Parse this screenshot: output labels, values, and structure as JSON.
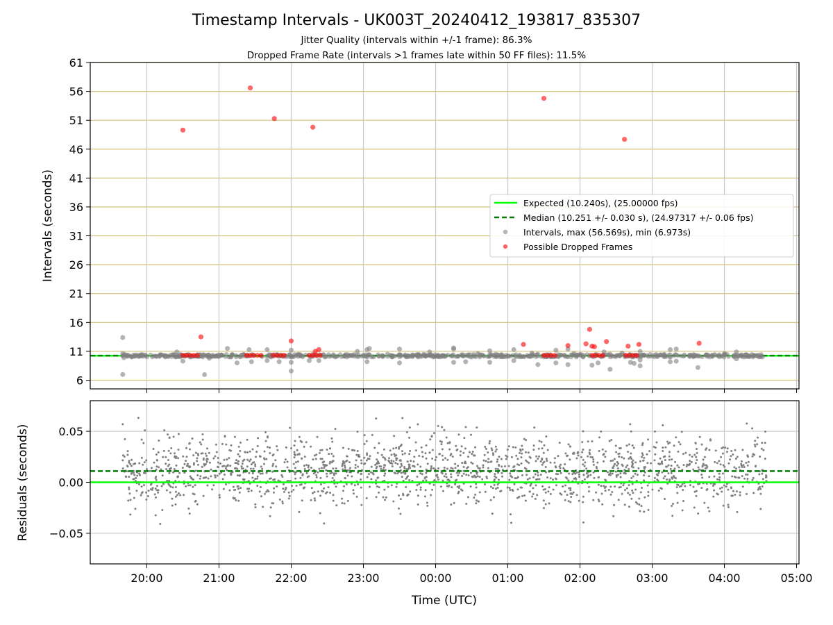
{
  "chart_data": [
    {
      "type": "scatter",
      "title": "Timestamp Intervals - UK003T_20240412_193817_835307",
      "subtitle_lines": [
        "Jitter Quality (intervals within +/-1 frame): 86.3%",
        "Dropped Frame Rate (intervals >1 frames late within 50 FF files): 11.5%"
      ],
      "xlabel": "",
      "ylabel": "Intervals (seconds)",
      "x_is_time": true,
      "x_ticks": [
        "20:00",
        "21:00",
        "22:00",
        "23:00",
        "00:00",
        "01:00",
        "02:00",
        "03:00",
        "04:00",
        "05:00"
      ],
      "xlim": [
        "19:13",
        "05:02"
      ],
      "ylim": [
        4.5,
        61
      ],
      "y_ticks": [
        6,
        11,
        16,
        21,
        26,
        31,
        36,
        41,
        46,
        51,
        56,
        61
      ],
      "grid": true,
      "legend_position": "center-right",
      "legend": [
        "Expected (10.240s), (25.00000 fps)",
        "Median (10.251 +/- 0.030 s), (24.97317 +/- 0.06 fps)",
        "Intervals, max (56.569s), min (6.973s)",
        "Possible Dropped Frames"
      ],
      "expected_interval": 10.24,
      "median_interval": 10.251,
      "series": [
        {
          "name": "Intervals, max (56.569s), min (6.973s)",
          "color": "#808080",
          "points": [
            [
              "19:40",
              13.4
            ],
            [
              "19:40",
              7.0
            ],
            [
              "19:40",
              10.6
            ],
            [
              "19:41",
              9.9
            ],
            [
              "19:55",
              10.4
            ],
            [
              "20:08",
              10.1
            ],
            [
              "20:25",
              10.9
            ],
            [
              "20:30",
              9.3
            ],
            [
              "20:42",
              10.4
            ],
            [
              "20:48",
              6.97
            ],
            [
              "20:52",
              9.8
            ],
            [
              "21:07",
              11.5
            ],
            [
              "21:15",
              9.0
            ],
            [
              "21:25",
              11.3
            ],
            [
              "21:27",
              9.2
            ],
            [
              "21:40",
              11.3
            ],
            [
              "21:40",
              9.4
            ],
            [
              "21:50",
              9.2
            ],
            [
              "22:00",
              11.2
            ],
            [
              "22:00",
              9.1
            ],
            [
              "22:00",
              7.6
            ],
            [
              "22:15",
              9.4
            ],
            [
              "22:23",
              9.4
            ],
            [
              "22:35",
              10.4
            ],
            [
              "22:55",
              11.0
            ],
            [
              "23:03",
              11.3
            ],
            [
              "23:03",
              9.2
            ],
            [
              "23:05",
              11.5
            ],
            [
              "23:20",
              10.5
            ],
            [
              "23:30",
              11.4
            ],
            [
              "23:30",
              9.0
            ],
            [
              "23:45",
              10.3
            ],
            [
              "23:55",
              10.9
            ],
            [
              "00:15",
              11.4
            ],
            [
              "00:15",
              9.1
            ],
            [
              "00:15",
              11.6
            ],
            [
              "00:25",
              10.3
            ],
            [
              "00:25",
              9.2
            ],
            [
              "00:35",
              10.6
            ],
            [
              "00:45",
              11.1
            ],
            [
              "00:45",
              9.1
            ],
            [
              "00:50",
              10.5
            ],
            [
              "01:05",
              11.3
            ],
            [
              "01:05",
              9.4
            ],
            [
              "01:20",
              10.7
            ],
            [
              "01:25",
              8.7
            ],
            [
              "01:25",
              10.5
            ],
            [
              "01:40",
              11.2
            ],
            [
              "01:40",
              9.0
            ],
            [
              "01:50",
              11.4
            ],
            [
              "01:50",
              8.7
            ],
            [
              "01:55",
              10.6
            ],
            [
              "02:10",
              8.6
            ],
            [
              "02:15",
              9.0
            ],
            [
              "02:20",
              10.9
            ],
            [
              "02:25",
              10.5
            ],
            [
              "02:25",
              7.9
            ],
            [
              "02:35",
              10.7
            ],
            [
              "02:42",
              9.1
            ],
            [
              "02:45",
              8.9
            ],
            [
              "02:50",
              11.0
            ],
            [
              "02:50",
              8.5
            ],
            [
              "02:50",
              9.5
            ],
            [
              "03:07",
              10.4
            ],
            [
              "03:15",
              11.3
            ],
            [
              "03:15",
              9.2
            ],
            [
              "03:20",
              11.4
            ],
            [
              "03:20",
              9.3
            ],
            [
              "03:35",
              10.3
            ],
            [
              "03:38",
              8.2
            ],
            [
              "03:45",
              10.4
            ],
            [
              "03:50",
              10.3
            ],
            [
              "04:00",
              10.6
            ],
            [
              "04:10",
              10.9
            ],
            [
              "04:10",
              9.7
            ],
            [
              "04:18",
              10.4
            ],
            [
              "04:25",
              10.3
            ],
            [
              "04:30",
              10.1
            ]
          ]
        },
        {
          "name": "Possible Dropped Frames",
          "color": "#ff0000",
          "points": [
            [
              "20:30",
              49.3
            ],
            [
              "20:45",
              13.5
            ],
            [
              "21:26",
              56.6
            ],
            [
              "21:46",
              51.3
            ],
            [
              "22:00",
              12.8
            ],
            [
              "22:18",
              49.8
            ],
            [
              "22:20",
              11.0
            ],
            [
              "22:23",
              11.3
            ],
            [
              "01:13",
              12.2
            ],
            [
              "01:30",
              54.8
            ],
            [
              "01:50",
              12.0
            ],
            [
              "02:05",
              12.3
            ],
            [
              "02:08",
              14.8
            ],
            [
              "02:10",
              11.9
            ],
            [
              "02:12",
              11.8
            ],
            [
              "02:22",
              12.7
            ],
            [
              "02:37",
              47.7
            ],
            [
              "02:40",
              11.9
            ],
            [
              "02:49",
              12.2
            ],
            [
              "03:39",
              12.4
            ],
            [
              "20:30",
              10.3
            ],
            [
              "20:33",
              10.3
            ],
            [
              "20:36",
              10.3
            ],
            [
              "20:39",
              10.3
            ],
            [
              "20:42",
              10.3
            ],
            [
              "21:23",
              10.3
            ],
            [
              "21:26",
              10.3
            ],
            [
              "21:29",
              10.3
            ],
            [
              "21:32",
              10.3
            ],
            [
              "21:35",
              10.3
            ],
            [
              "21:45",
              10.3
            ],
            [
              "21:48",
              10.3
            ],
            [
              "21:51",
              10.3
            ],
            [
              "21:54",
              10.3
            ],
            [
              "22:15",
              10.3
            ],
            [
              "22:18",
              10.3
            ],
            [
              "22:21",
              10.3
            ],
            [
              "22:24",
              10.3
            ],
            [
              "01:30",
              10.3
            ],
            [
              "01:33",
              10.3
            ],
            [
              "01:36",
              10.3
            ],
            [
              "01:39",
              10.3
            ],
            [
              "02:10",
              10.3
            ],
            [
              "02:13",
              10.3
            ],
            [
              "02:16",
              10.3
            ],
            [
              "02:19",
              10.3
            ],
            [
              "02:38",
              10.3
            ],
            [
              "02:41",
              10.3
            ],
            [
              "02:44",
              10.3
            ],
            [
              "02:47",
              10.3
            ]
          ]
        }
      ]
    },
    {
      "type": "scatter",
      "ylabel": "Residuals (seconds)",
      "xlabel": "Time (UTC)",
      "x_is_time": true,
      "x_ticks": [
        "20:00",
        "21:00",
        "22:00",
        "23:00",
        "00:00",
        "01:00",
        "02:00",
        "03:00",
        "04:00",
        "05:00"
      ],
      "xlim": [
        "19:13",
        "05:02"
      ],
      "ylim": [
        -0.08,
        0.08
      ],
      "y_ticks": [
        -0.05,
        0.0,
        0.05
      ],
      "y_tick_labels": [
        "−0.05",
        "0.00",
        "0.05"
      ],
      "grid": true,
      "expected_residual": 0.0,
      "median_residual": 0.011,
      "series": [
        {
          "name": "",
          "color": "#808080",
          "x_range": [
            "19:40",
            "04:35"
          ],
          "count": 1800,
          "mean": 0.011,
          "std": 0.024
        }
      ]
    }
  ]
}
